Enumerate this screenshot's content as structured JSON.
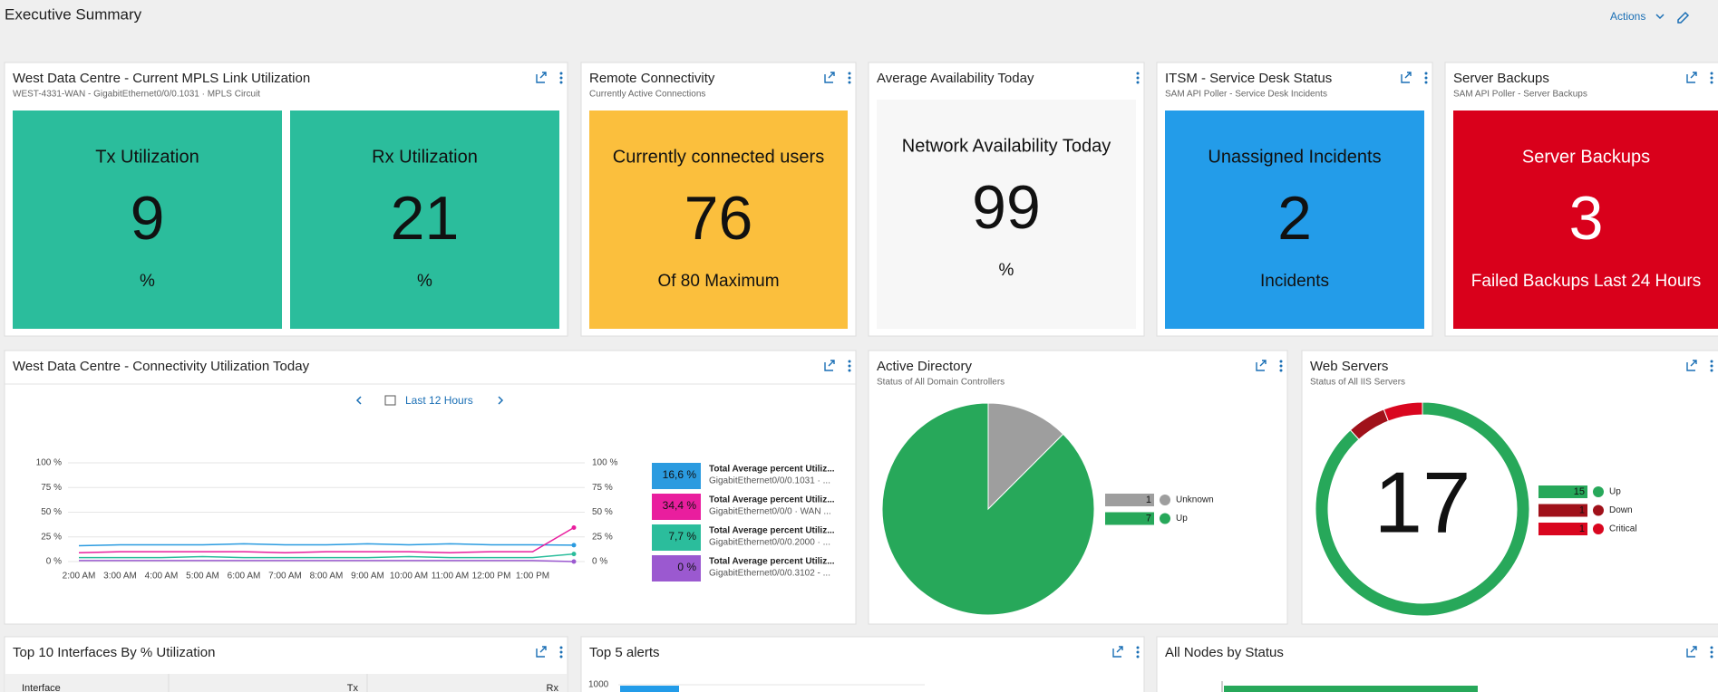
{
  "header": {
    "title": "Executive Summary",
    "actions": "Actions"
  },
  "kpi_tiles": [
    {
      "title": "West Data Centre - Current MPLS Link Utilization",
      "subtitle": "WEST-4331-WAN - GigabitEthernet0/0/0.1031 · MPLS Circuit",
      "boxes": [
        {
          "label": "Tx Utilization",
          "value": 9,
          "unit": "%",
          "color": "#2bbd9c",
          "text_color": "#111111"
        },
        {
          "label": "Rx Utilization",
          "value": 21,
          "unit": "%",
          "color": "#2bbd9c",
          "text_color": "#111111"
        }
      ]
    },
    {
      "title": "Remote Connectivity",
      "subtitle": "Currently Active Connections",
      "boxes": [
        {
          "label": "Currently connected users",
          "value": 76,
          "unit": "Of 80 Maximum",
          "color": "#fbbf3d",
          "text_color": "#111111"
        }
      ]
    },
    {
      "title": "Average Availability Today",
      "boxes": [
        {
          "label": "Network Availability Today",
          "value": 99,
          "unit": "%",
          "color": "#f7f7f7",
          "text_color": "#111111"
        }
      ]
    },
    {
      "title": "ITSM - Service Desk Status",
      "subtitle": "SAM API Poller - Service Desk Incidents",
      "boxes": [
        {
          "label": "Unassigned Incidents",
          "value": 2,
          "unit": "Incidents",
          "color": "#239ce9",
          "text_color": "#111111"
        }
      ]
    },
    {
      "title": "Server Backups",
      "subtitle": "SAM API Poller - Server Backups",
      "boxes": [
        {
          "label": "Server Backups",
          "value": 3,
          "unit": "Failed Backups Last 24 Hours",
          "color": "#d9001b",
          "text_color": "#ffffff"
        }
      ]
    }
  ],
  "utilization_chart": {
    "type": "line",
    "title": "West Data Centre - Connectivity Utilization Today",
    "range": "Last 12 Hours",
    "categories": [
      "2:00 AM",
      "3:00 AM",
      "4:00 AM",
      "5:00 AM",
      "6:00 AM",
      "7:00 AM",
      "8:00 AM",
      "9:00 AM",
      "10:00 AM",
      "11:00 AM",
      "12:00 PM",
      "1:00 PM",
      null
    ],
    "ylim": [
      0,
      100
    ],
    "yticks": [
      {
        "value": 0,
        "label": "0 %"
      },
      {
        "value": 25,
        "label": "25 %"
      },
      {
        "value": 50,
        "label": "50 %"
      },
      {
        "value": 75,
        "label": "75 %"
      },
      {
        "value": 100,
        "label": "100 %"
      }
    ],
    "y2lim": [
      0,
      100
    ],
    "y2ticks": [
      {
        "value": 0,
        "label": "0 %"
      },
      {
        "value": 25,
        "label": "25 %"
      },
      {
        "value": 50,
        "label": "50 %"
      },
      {
        "value": 75,
        "label": "75 %"
      },
      {
        "value": 100,
        "label": "100 %"
      }
    ],
    "grid": true,
    "series": [
      {
        "name": "Total Average percent Utiliz...",
        "detail": "GigabitEthernet0/0/0.1031 · ...",
        "color": "#2b9be0",
        "values": [
          16,
          17,
          17,
          17,
          18,
          17,
          17,
          18,
          17,
          18,
          17,
          17,
          16.6
        ],
        "last_label": "16,6 %"
      },
      {
        "name": "Total Average percent Utiliz...",
        "detail": "GigabitEthernet0/0/0 · WAN ...",
        "color": "#e91e9e",
        "values": [
          9,
          10,
          10,
          10,
          10,
          9,
          10,
          10,
          10,
          9,
          10,
          10,
          34.4
        ],
        "last_label": "34,4 %"
      },
      {
        "name": "Total Average percent Utiliz...",
        "detail": "GigabitEthernet0/0/0.2000 · ...",
        "color": "#2bbd9c",
        "values": [
          4,
          4,
          4,
          5,
          4,
          4,
          4,
          4,
          5,
          4,
          4,
          4,
          7.7
        ],
        "last_label": "7,7 %"
      },
      {
        "name": "Total Average percent Utiliz...",
        "detail": "GigabitEthernet0/0/0.3102 - ...",
        "color": "#9b59d0",
        "values": [
          1,
          1,
          1,
          1,
          1,
          1,
          1,
          1,
          1,
          1,
          1,
          1,
          0
        ],
        "last_label": "0 %"
      }
    ]
  },
  "active_directory": {
    "type": "pie",
    "title": "Active Directory",
    "subtitle": "Status of All Domain Controllers",
    "categories": [
      "Unknown",
      "Up"
    ],
    "values": [
      1,
      7
    ],
    "colors": [
      "#9e9e9e",
      "#27a85a"
    ]
  },
  "web_servers": {
    "type": "donut",
    "title": "Web Servers",
    "subtitle": "Status of All IIS Servers",
    "categories": [
      "Up",
      "Down",
      "Critical"
    ],
    "values": [
      15,
      1,
      1
    ],
    "colors": [
      "#27a85a",
      "#a0111a",
      "#d9061f"
    ],
    "total": 17
  },
  "bottom_tiles": [
    {
      "title": "Top 10 Interfaces By % Utilization",
      "columns": [
        "Interface",
        "Tx",
        "Rx"
      ]
    },
    {
      "title": "Top 5 alerts",
      "yticks": [
        1000
      ]
    },
    {
      "title": "All Nodes by Status"
    }
  ]
}
